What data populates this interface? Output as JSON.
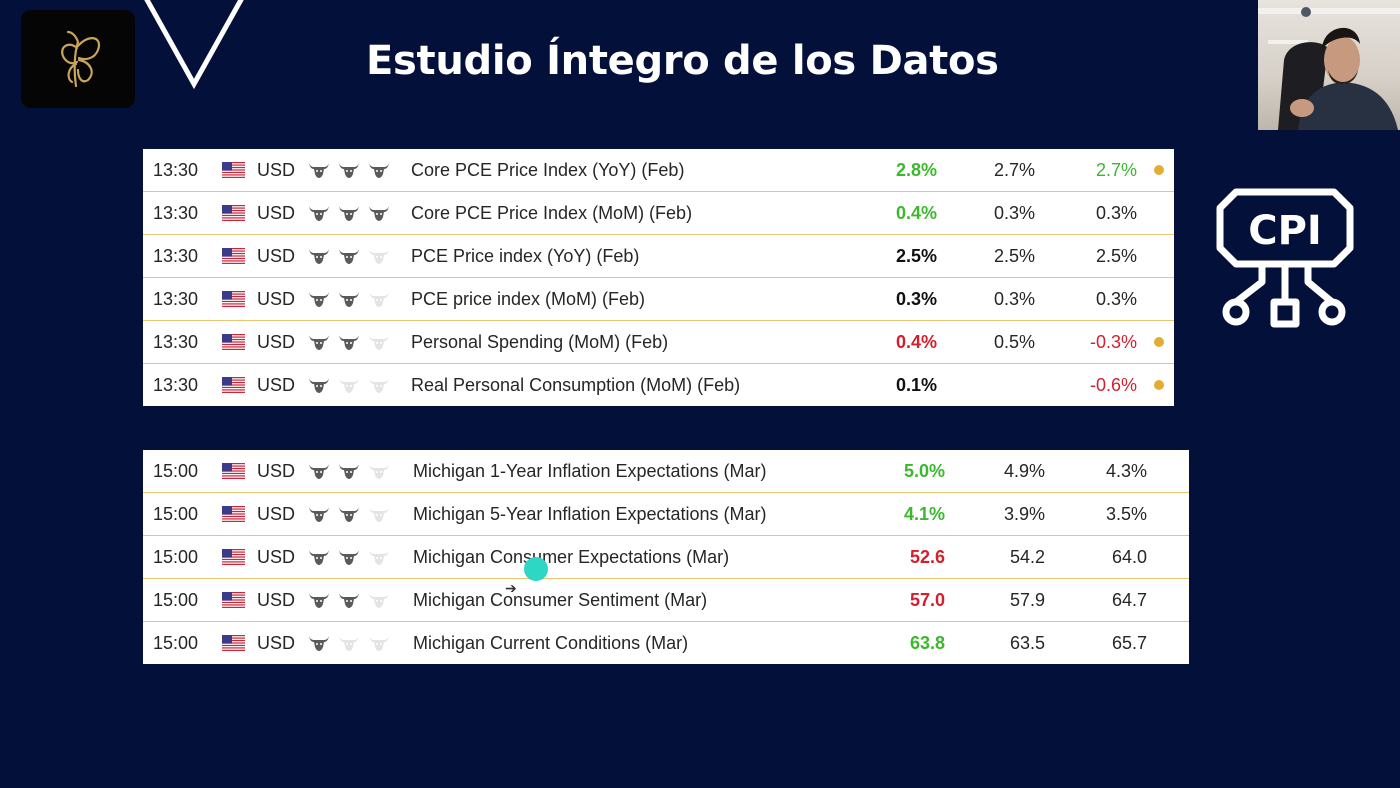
{
  "slide": {
    "title": "Estudio Íntegro de los Datos"
  },
  "icons": {
    "logo": "butterfly-logo-icon",
    "chevron": "chevron-down-outline-icon",
    "cpi": "cpi-chip-icon"
  },
  "cpi_icon_text": "CPI",
  "colors": {
    "background": "#03103a",
    "positive": "#3cb82e",
    "negative": "#d41f2e",
    "neutral": "#111111",
    "dot": "#e5ac34",
    "row_border": "#e8c66e"
  },
  "calendar1": {
    "rows": [
      {
        "time": "13:30",
        "currency": "USD",
        "importance": 3,
        "event": "Core PCE Price Index (YoY) (Feb)",
        "actual": "2.8%",
        "actual_status": "positive",
        "forecast": "2.7%",
        "previous": "2.7%",
        "previous_status": "positive",
        "dot": true
      },
      {
        "time": "13:30",
        "currency": "USD",
        "importance": 3,
        "event": "Core PCE Price Index (MoM) (Feb)",
        "actual": "0.4%",
        "actual_status": "positive",
        "forecast": "0.3%",
        "previous": "0.3%",
        "previous_status": "neutral",
        "dot": false
      },
      {
        "time": "13:30",
        "currency": "USD",
        "importance": 2,
        "event": "PCE Price index (YoY) (Feb)",
        "actual": "2.5%",
        "actual_status": "neutral",
        "forecast": "2.5%",
        "previous": "2.5%",
        "previous_status": "neutral",
        "dot": false
      },
      {
        "time": "13:30",
        "currency": "USD",
        "importance": 2,
        "event": "PCE price index (MoM) (Feb)",
        "actual": "0.3%",
        "actual_status": "neutral",
        "forecast": "0.3%",
        "previous": "0.3%",
        "previous_status": "neutral",
        "dot": false
      },
      {
        "time": "13:30",
        "currency": "USD",
        "importance": 2,
        "event": "Personal Spending (MoM) (Feb)",
        "actual": "0.4%",
        "actual_status": "negative",
        "forecast": "0.5%",
        "previous": "-0.3%",
        "previous_status": "negative",
        "dot": true
      },
      {
        "time": "13:30",
        "currency": "USD",
        "importance": 1,
        "event": "Real Personal Consumption (MoM) (Feb)",
        "actual": "0.1%",
        "actual_status": "neutral",
        "forecast": "",
        "previous": "-0.6%",
        "previous_status": "negative",
        "dot": true
      }
    ]
  },
  "calendar2": {
    "rows": [
      {
        "time": "15:00",
        "currency": "USD",
        "importance": 2,
        "event": "Michigan 1-Year Inflation Expectations (Mar)",
        "actual": "5.0%",
        "actual_status": "positive",
        "forecast": "4.9%",
        "previous": "4.3%",
        "previous_status": "neutral",
        "dot": false
      },
      {
        "time": "15:00",
        "currency": "USD",
        "importance": 2,
        "event": "Michigan 5-Year Inflation Expectations (Mar)",
        "actual": "4.1%",
        "actual_status": "positive",
        "forecast": "3.9%",
        "previous": "3.5%",
        "previous_status": "neutral",
        "dot": false
      },
      {
        "time": "15:00",
        "currency": "USD",
        "importance": 2,
        "event": "Michigan Consumer Expectations (Mar)",
        "actual": "52.6",
        "actual_status": "negative",
        "forecast": "54.2",
        "previous": "64.0",
        "previous_status": "neutral",
        "dot": false
      },
      {
        "time": "15:00",
        "currency": "USD",
        "importance": 2,
        "event": "Michigan Consumer Sentiment (Mar)",
        "actual": "57.0",
        "actual_status": "negative",
        "forecast": "57.9",
        "previous": "64.7",
        "previous_status": "neutral",
        "dot": false
      },
      {
        "time": "15:00",
        "currency": "USD",
        "importance": 1,
        "event": "Michigan Current Conditions (Mar)",
        "actual": "63.8",
        "actual_status": "positive",
        "forecast": "63.5",
        "previous": "65.7",
        "previous_status": "neutral",
        "dot": false
      }
    ]
  }
}
